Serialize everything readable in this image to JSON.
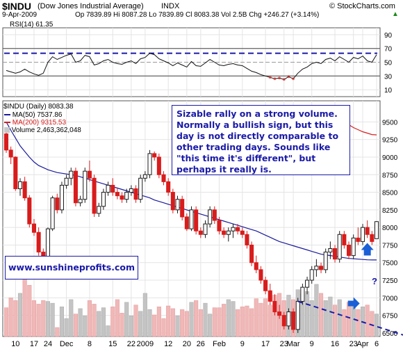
{
  "header": {
    "symbol": "$INDU",
    "name": "(Dow Jones Industrial Average)",
    "exchange": "INDX",
    "brand": "© StockCharts.com",
    "date": "9-Apr-2009",
    "quote": "Op 7839.89  Hi 8087.28  Lo 7839.89  Cl 8083.38  Vol 2.5B  Chg +246.27 (+3.14%)",
    "quote_arrow": "▲"
  },
  "rsi": {
    "label": "RSI(14) 61.35",
    "ticks": [
      "90",
      "70",
      "50",
      "30",
      "10"
    ]
  },
  "price": {
    "label": "$INDU (Daily) 8083.38",
    "legend": [
      {
        "text": "MA(50) 7537.86",
        "color": "#1a1a9c"
      },
      {
        "text": "MA(200) 9315.53",
        "color": "#d81c1c"
      },
      {
        "text": "Volume 2,463,362,048",
        "color": "#888888"
      }
    ],
    "ticks": [
      "9500",
      "9250",
      "9000",
      "8750",
      "8500",
      "8250",
      "8000",
      "7750",
      "7500",
      "7250",
      "7000",
      "6750",
      "6500"
    ]
  },
  "x_axis": {
    "labels": [
      "10",
      "17",
      "24",
      "Dec",
      "8",
      "15",
      "22",
      "2009",
      "12",
      "20",
      "26",
      "Feb",
      "9",
      "17",
      "23",
      "Mar",
      "9",
      "16",
      "23",
      "Apr",
      "6"
    ]
  },
  "annotations": {
    "comment": "Sizable rally on a strong volume. Normally a bullish sign, but this day is not directly comparable to other trading days. Sounds like \"this time it's different\", but perhaps it really is.",
    "website": "www.sunshineprofits.com",
    "question": "?"
  },
  "colors": {
    "up": "#1a1a1a",
    "down": "#d81c1c",
    "ma50": "#1a1a9c",
    "ma200": "#d81c1c",
    "accent": "#1a1aa8"
  },
  "chart_data": {
    "type": "candlestick",
    "ylim": [
      6450,
      9800
    ],
    "rsi_levels": [
      70,
      30
    ],
    "ohlc": [
      [
        9330,
        9350,
        9060,
        9100
      ],
      [
        9100,
        9150,
        8900,
        9000
      ],
      [
        9000,
        9010,
        8520,
        8550
      ],
      [
        8550,
        8700,
        8450,
        8650
      ],
      [
        8650,
        8720,
        8380,
        8420
      ],
      [
        8420,
        8460,
        8000,
        8050
      ],
      [
        8050,
        8120,
        7880,
        7930
      ],
      [
        7930,
        8000,
        7600,
        7650
      ],
      [
        7650,
        7700,
        7450,
        7560
      ],
      [
        7560,
        8000,
        7520,
        7980
      ],
      [
        7980,
        8450,
        7950,
        8420
      ],
      [
        8420,
        8480,
        8200,
        8250
      ],
      [
        8250,
        8650,
        8200,
        8600
      ],
      [
        8600,
        8750,
        8550,
        8700
      ],
      [
        8700,
        8850,
        8600,
        8800
      ],
      [
        8800,
        8850,
        8300,
        8350
      ],
      [
        8350,
        8450,
        8300,
        8400
      ],
      [
        8400,
        8850,
        8350,
        8800
      ],
      [
        8800,
        8950,
        8650,
        8700
      ],
      [
        8700,
        8750,
        8150,
        8200
      ],
      [
        8200,
        8350,
        8150,
        8300
      ],
      [
        8300,
        8550,
        8250,
        8500
      ],
      [
        8500,
        8650,
        8450,
        8600
      ],
      [
        8600,
        8700,
        8450,
        8500
      ],
      [
        8500,
        8550,
        8400,
        8450
      ],
      [
        8450,
        8500,
        8350,
        8400
      ],
      [
        8400,
        8550,
        8350,
        8500
      ],
      [
        8500,
        8600,
        8450,
        8550
      ],
      [
        8550,
        8600,
        8350,
        8400
      ],
      [
        8400,
        8750,
        8350,
        8700
      ],
      [
        8700,
        8800,
        8650,
        8750
      ],
      [
        8750,
        9100,
        8700,
        9050
      ],
      [
        9050,
        9080,
        8950,
        9000
      ],
      [
        9000,
        9050,
        8700,
        8750
      ],
      [
        8750,
        8800,
        8600,
        8650
      ],
      [
        8650,
        8700,
        8450,
        8500
      ],
      [
        8500,
        8550,
        8200,
        8250
      ],
      [
        8250,
        8450,
        8200,
        8400
      ],
      [
        8400,
        8450,
        8100,
        8150
      ],
      [
        8150,
        8200,
        7950,
        7980
      ],
      [
        7980,
        8300,
        7950,
        8250
      ],
      [
        8250,
        8300,
        7900,
        7950
      ],
      [
        7950,
        8000,
        7850,
        7900
      ],
      [
        7900,
        8100,
        7850,
        8050
      ],
      [
        8050,
        8300,
        8000,
        8250
      ],
      [
        8250,
        8300,
        8050,
        8100
      ],
      [
        8100,
        8150,
        7900,
        7950
      ],
      [
        7950,
        8000,
        7850,
        7900
      ],
      [
        7900,
        8000,
        7800,
        7950
      ],
      [
        7950,
        8050,
        7850,
        8000
      ],
      [
        8000,
        8050,
        7900,
        7950
      ],
      [
        7950,
        8000,
        7850,
        7900
      ],
      [
        7900,
        7950,
        7700,
        7750
      ],
      [
        7750,
        7800,
        7450,
        7500
      ],
      [
        7500,
        7600,
        7350,
        7400
      ],
      [
        7400,
        7450,
        7200,
        7250
      ],
      [
        7250,
        7300,
        7050,
        7100
      ],
      [
        7100,
        7200,
        6900,
        6950
      ],
      [
        6950,
        7050,
        6750,
        6800
      ],
      [
        6800,
        6900,
        6700,
        6750
      ],
      [
        6750,
        6800,
        6550,
        6600
      ],
      [
        6600,
        6850,
        6550,
        6800
      ],
      [
        6800,
        6850,
        6500,
        6550
      ],
      [
        6550,
        7000,
        6500,
        6950
      ],
      [
        6950,
        7200,
        6900,
        7150
      ],
      [
        7150,
        7300,
        7050,
        7250
      ],
      [
        7250,
        7450,
        7200,
        7400
      ],
      [
        7400,
        7550,
        7300,
        7450
      ],
      [
        7450,
        7500,
        7350,
        7400
      ],
      [
        7400,
        7700,
        7350,
        7650
      ],
      [
        7650,
        7800,
        7550,
        7700
      ],
      [
        7700,
        7750,
        7500,
        7550
      ],
      [
        7550,
        7950,
        7500,
        7900
      ],
      [
        7900,
        7950,
        7700,
        7750
      ],
      [
        7750,
        7800,
        7550,
        7600
      ],
      [
        7600,
        7900,
        7550,
        7850
      ],
      [
        7850,
        8000,
        7750,
        7800
      ],
      [
        7800,
        8050,
        7750,
        8000
      ],
      [
        8000,
        8100,
        7850,
        7900
      ],
      [
        7900,
        7950,
        7750,
        7800
      ],
      [
        7840,
        8090,
        7840,
        8083
      ]
    ],
    "ma50": [
      9500,
      9380,
      9270,
      9160,
      9080,
      9000,
      8930,
      8880,
      8850,
      8820,
      8800,
      8780,
      8770,
      8760,
      8750,
      8740,
      8720,
      8700,
      8680,
      8660,
      8640,
      8620,
      8600,
      8580,
      8560,
      8540,
      8520,
      8500,
      8480,
      8460,
      8440,
      8420,
      8390,
      8370,
      8350,
      8330,
      8310,
      8290,
      8270,
      8250,
      8230,
      8210,
      8190,
      8170,
      8150,
      8130,
      8110,
      8090,
      8070,
      8050,
      8030,
      8010,
      7990,
      7970,
      7950,
      7920,
      7890,
      7860,
      7830,
      7800,
      7780,
      7760,
      7740,
      7720,
      7700,
      7680,
      7660,
      7640,
      7620,
      7610,
      7600,
      7590,
      7580,
      7570,
      7560,
      7555,
      7550,
      7545,
      7540,
      7538,
      7537.86
    ],
    "ma200_tail": [
      9650,
      9620,
      9580,
      9540,
      9500,
      9460,
      9420,
      9390,
      9360,
      9340,
      9320,
      9315.53
    ],
    "volume": [
      3.2,
      4.3,
      4.0,
      4.8,
      6.6,
      5.7,
      4.0,
      3.6,
      4.0,
      3.9,
      3.7,
      1.0,
      3.3,
      2.0,
      4.1,
      2.5,
      3.1,
      2.3,
      4.0,
      3.6,
      2.8,
      3.2,
      1.2,
      3.3,
      4.1,
      2.6,
      3.8,
      2.3,
      3.5,
      2.8,
      4.8,
      3.0,
      2.4,
      3.3,
      2.0,
      3.4,
      3.1,
      2.3,
      3.0,
      2.8,
      3.8,
      4.0,
      3.0,
      3.7,
      2.5,
      3.2,
      3.2,
      3.6,
      4.1,
      3.9,
      3.0,
      3.3,
      3.4,
      3.1,
      4.2,
      3.7,
      4.2,
      3.5,
      4.6,
      4.8,
      4.0,
      4.6,
      4.1,
      5.2,
      4.8,
      5.0,
      4.0,
      5.8,
      4.8,
      4.0,
      4.4,
      3.5,
      4.1,
      3.0,
      3.8,
      3.5,
      3.0,
      3.3,
      3.5,
      2.8,
      2.5
    ],
    "rsi": [
      38,
      36,
      34,
      36,
      40,
      36,
      33,
      31,
      34,
      50,
      58,
      54,
      57,
      60,
      62,
      50,
      52,
      60,
      58,
      46,
      48,
      52,
      54,
      50,
      48,
      47,
      50,
      52,
      48,
      55,
      57,
      63,
      61,
      55,
      52,
      49,
      45,
      49,
      46,
      43,
      51,
      45,
      44,
      49,
      54,
      50,
      46,
      45,
      47,
      48,
      46,
      45,
      41,
      37,
      35,
      32,
      30,
      28,
      26,
      27,
      25,
      29,
      26,
      34,
      40,
      43,
      48,
      50,
      48,
      54,
      56,
      52,
      58,
      54,
      50,
      57,
      55,
      59,
      52,
      50,
      61
    ]
  }
}
